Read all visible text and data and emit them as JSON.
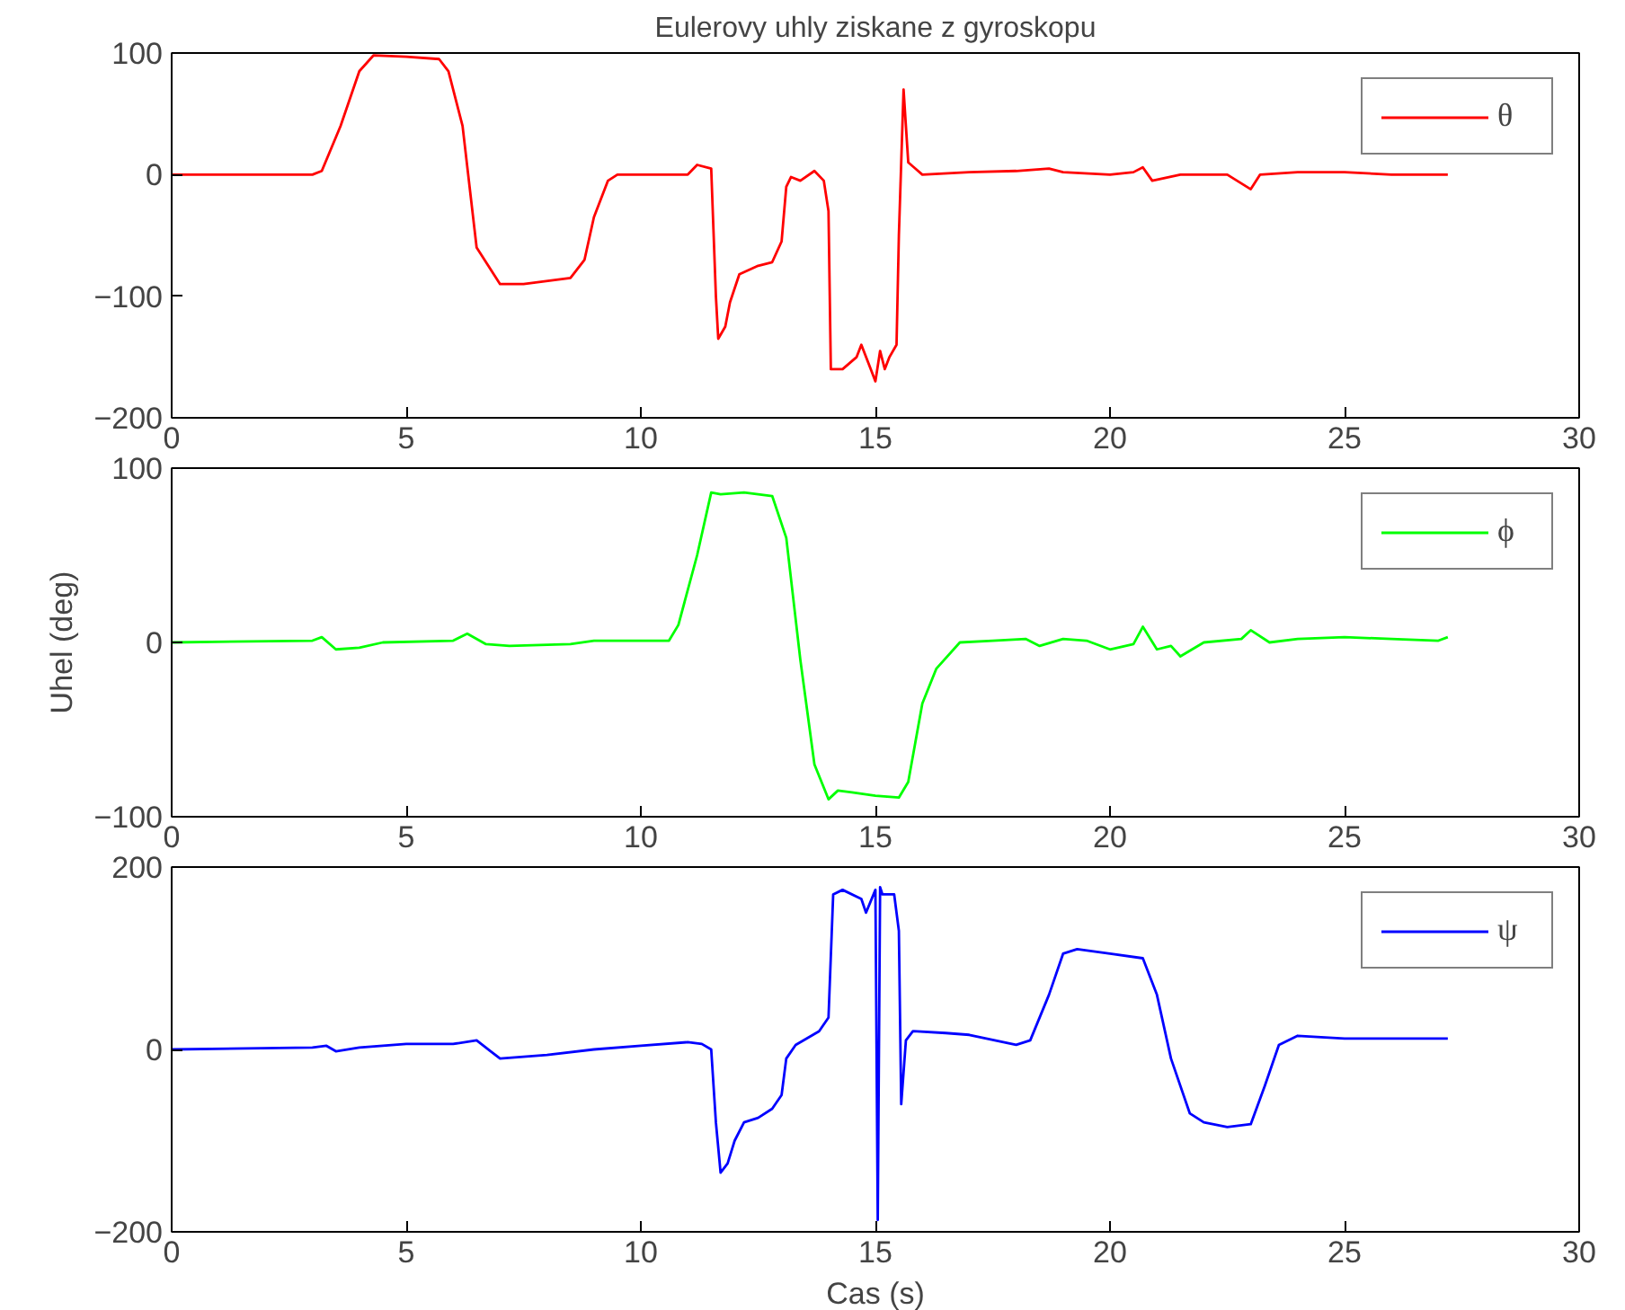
{
  "chart_data": [
    {
      "type": "line",
      "title": "Eulerovy uhly ziskane z gyroskopu",
      "xlim": [
        0,
        30
      ],
      "xticks": [
        0,
        5,
        10,
        15,
        20,
        25,
        30
      ],
      "ylim": [
        -200,
        100
      ],
      "yticks": [
        -200,
        -100,
        0,
        100
      ],
      "legend": "top right",
      "series": [
        {
          "name": "θ",
          "color": "#ff0000",
          "x": [
            0,
            3,
            3.2,
            3.6,
            4.0,
            4.3,
            5.0,
            5.7,
            5.9,
            6.2,
            6.5,
            7.0,
            7.5,
            8.5,
            8.8,
            9.0,
            9.3,
            9.5,
            10.5,
            11.0,
            11.2,
            11.5,
            11.6,
            11.65,
            11.8,
            11.9,
            12.1,
            12.5,
            12.8,
            13.0,
            13.1,
            13.2,
            13.4,
            13.7,
            13.9,
            14.0,
            14.05,
            14.3,
            14.6,
            14.7,
            14.9,
            15.0,
            15.1,
            15.2,
            15.3,
            15.45,
            15.5,
            15.6,
            15.7,
            16.0,
            17,
            18,
            18.7,
            19,
            20,
            20.5,
            20.7,
            20.9,
            21.5,
            22.5,
            23.0,
            23.2,
            24,
            25,
            26,
            27.2
          ],
          "values": [
            0,
            0,
            3,
            40,
            85,
            98,
            97,
            95,
            85,
            40,
            -60,
            -90,
            -90,
            -85,
            -70,
            -35,
            -5,
            0,
            0,
            0,
            8,
            5,
            -100,
            -135,
            -125,
            -105,
            -82,
            -75,
            -72,
            -55,
            -10,
            -2,
            -5,
            3,
            -5,
            -30,
            -160,
            -160,
            -150,
            -140,
            -160,
            -170,
            -145,
            -160,
            -150,
            -140,
            -50,
            70,
            10,
            0,
            2,
            3,
            5,
            2,
            0,
            2,
            6,
            -5,
            0,
            0,
            -12,
            0,
            2,
            2,
            0,
            0
          ]
        }
      ]
    },
    {
      "type": "line",
      "ylabel": "Uhel (deg)",
      "xlim": [
        0,
        30
      ],
      "xticks": [
        0,
        5,
        10,
        15,
        20,
        25,
        30
      ],
      "ylim": [
        -100,
        100
      ],
      "yticks": [
        -100,
        0,
        100
      ],
      "legend": "top right",
      "series": [
        {
          "name": "ϕ",
          "color": "#00ff00",
          "x": [
            0,
            3,
            3.2,
            3.5,
            4,
            4.5,
            6,
            6.3,
            6.7,
            7.2,
            8.5,
            9,
            10,
            10.6,
            10.8,
            11.2,
            11.5,
            11.7,
            12.2,
            12.8,
            13.1,
            13.4,
            13.7,
            14.0,
            14.2,
            14.5,
            15.0,
            15.5,
            15.7,
            16.0,
            16.3,
            16.8,
            17.5,
            18.2,
            18.5,
            19,
            19.5,
            20,
            20.5,
            20.7,
            21.0,
            21.3,
            21.5,
            22,
            22.8,
            23,
            23.4,
            24,
            25,
            26,
            27,
            27.2
          ],
          "values": [
            0,
            1,
            3,
            -4,
            -3,
            0,
            1,
            5,
            -1,
            -2,
            -1,
            1,
            1,
            1,
            10,
            50,
            86,
            85,
            86,
            84,
            60,
            -10,
            -70,
            -90,
            -85,
            -86,
            -88,
            -89,
            -80,
            -35,
            -15,
            0,
            1,
            2,
            -2,
            2,
            1,
            -4,
            -1,
            9,
            -4,
            -2,
            -8,
            0,
            2,
            7,
            0,
            2,
            3,
            2,
            1,
            3
          ]
        }
      ]
    },
    {
      "type": "line",
      "xlabel": "Cas (s)",
      "xlim": [
        0,
        30
      ],
      "xticks": [
        0,
        5,
        10,
        15,
        20,
        25,
        30
      ],
      "ylim": [
        -200,
        200
      ],
      "yticks": [
        -200,
        0,
        200
      ],
      "legend": "top right",
      "series": [
        {
          "name": "ψ",
          "color": "#0000ff",
          "x": [
            0,
            3,
            3.3,
            3.5,
            4,
            5,
            6,
            6.5,
            6.8,
            7.0,
            8,
            9,
            10,
            11,
            11.3,
            11.5,
            11.6,
            11.7,
            11.85,
            12.0,
            12.2,
            12.5,
            12.8,
            13.0,
            13.1,
            13.3,
            13.8,
            14.0,
            14.1,
            14.3,
            14.7,
            14.8,
            15.0,
            15.05,
            15.1,
            15.15,
            15.2,
            15.4,
            15.5,
            15.55,
            15.65,
            15.8,
            16.5,
            17,
            18,
            18.3,
            18.7,
            19.0,
            19.3,
            20,
            20.7,
            21.0,
            21.3,
            21.7,
            22.0,
            22.5,
            23.0,
            23.3,
            23.6,
            24,
            25,
            27.2
          ],
          "values": [
            0,
            2,
            4,
            -2,
            2,
            6,
            6,
            10,
            -2,
            -10,
            -6,
            0,
            4,
            8,
            6,
            0,
            -80,
            -135,
            -125,
            -100,
            -80,
            -75,
            -65,
            -50,
            -10,
            5,
            20,
            35,
            170,
            175,
            165,
            150,
            175,
            -187,
            178,
            170,
            170,
            170,
            130,
            -60,
            10,
            20,
            18,
            16,
            5,
            10,
            60,
            105,
            110,
            105,
            100,
            60,
            -10,
            -70,
            -80,
            -85,
            -82,
            -40,
            5,
            15,
            12,
            12
          ]
        }
      ]
    }
  ]
}
